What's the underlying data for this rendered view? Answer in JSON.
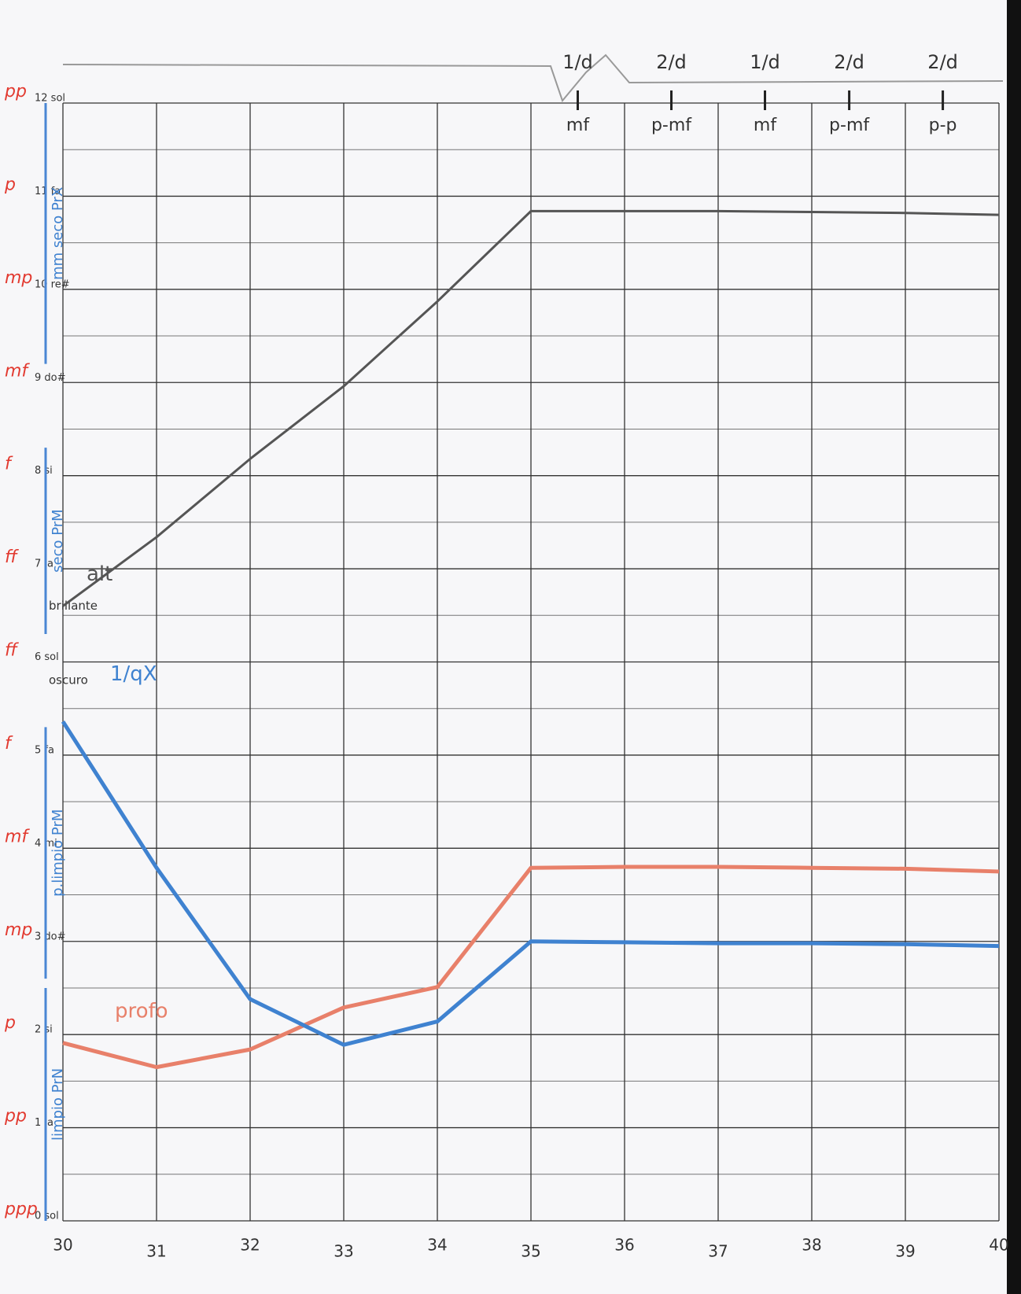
{
  "chart_data": {
    "type": "line",
    "x": [
      30,
      31,
      32,
      33,
      34,
      35,
      36,
      37,
      38,
      39,
      40
    ],
    "xlim": [
      30,
      40
    ],
    "xticks": [
      30,
      31,
      32,
      33,
      34,
      35,
      36,
      37,
      38,
      39,
      40
    ],
    "ylim": [
      0,
      12
    ],
    "yticks": [
      {
        "value": 0,
        "label": "0 sol"
      },
      {
        "value": 1,
        "label": "1 la"
      },
      {
        "value": 2,
        "label": "2 si"
      },
      {
        "value": 3,
        "label": "3 do#"
      },
      {
        "value": 4,
        "label": "4 mi"
      },
      {
        "value": 5,
        "label": "5 fa"
      },
      {
        "value": 6,
        "label": "6 sol"
      },
      {
        "value": 7,
        "label": "7 la"
      },
      {
        "value": 8,
        "label": "8 si"
      },
      {
        "value": 9,
        "label": "9 do#"
      },
      {
        "value": 10,
        "label": "10 re#"
      },
      {
        "value": 11,
        "label": "11 fa"
      },
      {
        "value": 12,
        "label": "12 sol"
      }
    ],
    "minor_yticks": [
      0.5,
      1.5,
      2.5,
      3.5,
      4.5,
      5.5,
      6.5,
      7.5,
      8.5,
      9.5,
      10.5,
      11.5
    ],
    "dynamics": [
      "ppp",
      "pp",
      "p",
      "mp",
      "mf",
      "f",
      "ff",
      "ff",
      "f",
      "mf",
      "mp",
      "p",
      "pp"
    ],
    "axis_bands": [
      {
        "label": "limpio PrN",
        "from": 0,
        "to": 2.5
      },
      {
        "label": "p.limpio PrM",
        "from": 2.6,
        "to": 5.3
      },
      {
        "label": "seco PrM",
        "from": 6.3,
        "to": 8.3
      },
      {
        "label": "mm seco PrX",
        "from": 9.2,
        "to": 12
      }
    ],
    "notes": [
      {
        "value": 6.6,
        "label": "brillante"
      },
      {
        "value": 5.8,
        "label": "oscuro"
      }
    ],
    "annotations": [
      {
        "x": 35.5,
        "top": "1/d",
        "bottom": "mf"
      },
      {
        "x": 36.5,
        "top": "2/d",
        "bottom": "p-mf"
      },
      {
        "x": 37.5,
        "top": "1/d",
        "bottom": "mf"
      },
      {
        "x": 38.4,
        "top": "2/d",
        "bottom": "p-mf"
      },
      {
        "x": 39.4,
        "top": "2/d",
        "bottom": "p-p"
      }
    ],
    "grid": true,
    "series": [
      {
        "name": "alt",
        "color": "#555555",
        "values": [
          6.6,
          7.34,
          8.18,
          8.96,
          9.87,
          10.84,
          10.84,
          10.84,
          10.83,
          10.82,
          10.8
        ]
      },
      {
        "name": "profo",
        "color": "#e8806a",
        "values": [
          1.91,
          1.65,
          1.84,
          2.29,
          2.51,
          3.79,
          3.8,
          3.8,
          3.79,
          3.78,
          3.75
        ]
      },
      {
        "name": "1/qX",
        "color": "#3f82d0",
        "values": [
          5.36,
          3.79,
          2.38,
          1.89,
          2.14,
          3.0,
          2.99,
          2.98,
          2.98,
          2.97,
          2.95
        ]
      }
    ]
  }
}
